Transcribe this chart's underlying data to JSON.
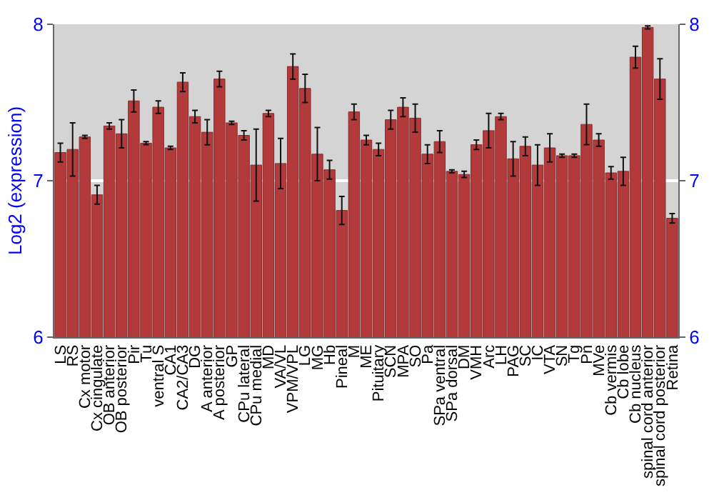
{
  "chart_data": {
    "type": "bar",
    "ylabel": "Log2 (expression)",
    "categories": [
      "LS",
      "RS",
      "Cx motor",
      "Cx cingulate",
      "OB anterior",
      "OB posterior",
      "Pir",
      "Tu",
      "ventral S",
      "CA1",
      "CA2/CA3",
      "DG",
      "A anterior",
      "A posterior",
      "GP",
      "CPu lateral",
      "CPu medial",
      "MD",
      "VA/VL",
      "VPM/VPL",
      "LG",
      "MG",
      "Hb",
      "Pineal",
      "M",
      "ME",
      "Pituitary",
      "SCN",
      "MPA",
      "SO",
      "Pa",
      "SPa ventral",
      "SPa dorsal",
      "DM",
      "VMH",
      "Arc",
      "LH",
      "PAG",
      "SC",
      "IC",
      "VTA",
      "SN",
      "Tg",
      "Pn",
      "MVe",
      "Cb vermis",
      "Cb lobe",
      "Cb nucleus",
      "spinal cord anterior",
      "spinal cord posterior",
      "Retina"
    ],
    "values": [
      7.18,
      7.2,
      7.28,
      6.91,
      7.35,
      7.3,
      7.51,
      7.24,
      7.47,
      7.21,
      7.63,
      7.41,
      7.31,
      7.65,
      7.37,
      7.29,
      7.1,
      7.43,
      7.11,
      7.73,
      7.59,
      7.17,
      7.07,
      6.81,
      7.44,
      7.26,
      7.2,
      7.39,
      7.47,
      7.4,
      7.17,
      7.25,
      7.06,
      7.04,
      7.23,
      7.32,
      7.41,
      7.14,
      7.22,
      7.1,
      7.21,
      7.16,
      7.16,
      7.36,
      7.26,
      7.05,
      7.06,
      7.79,
      7.98,
      7.65,
      6.76
    ],
    "errors": [
      0.06,
      0.17,
      0.01,
      0.06,
      0.02,
      0.09,
      0.07,
      0.01,
      0.04,
      0.01,
      0.06,
      0.04,
      0.08,
      0.05,
      0.01,
      0.03,
      0.23,
      0.02,
      0.16,
      0.08,
      0.09,
      0.17,
      0.06,
      0.09,
      0.05,
      0.03,
      0.04,
      0.06,
      0.06,
      0.09,
      0.06,
      0.07,
      0.01,
      0.02,
      0.03,
      0.11,
      0.02,
      0.11,
      0.06,
      0.13,
      0.09,
      0.01,
      0.01,
      0.13,
      0.04,
      0.04,
      0.09,
      0.07,
      0.01,
      0.13,
      0.03
    ],
    "color": "#b33a3a",
    "ylim": [
      6,
      8
    ],
    "yticks": [
      6,
      7,
      8
    ],
    "y2lim": [
      6,
      8
    ],
    "y2ticks": [
      6,
      7,
      8
    ],
    "grid": "y"
  }
}
